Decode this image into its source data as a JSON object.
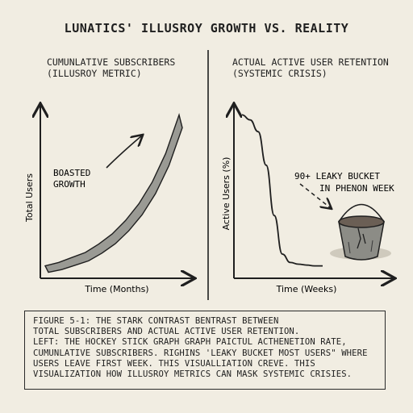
{
  "title": "LUNATICS' ILLUSROY GROWTH VS. REALITY",
  "chart_data": [
    {
      "type": "area",
      "title_lines": [
        "CUMUNLATIVE SUBSCRIBERS",
        "(ILLUSROY METRIC)"
      ],
      "xlabel": "Time (Months)",
      "ylabel": "Total Users",
      "x": [
        0,
        1,
        2,
        3,
        4,
        5,
        6,
        7,
        8,
        9,
        10
      ],
      "values": [
        5,
        7,
        10,
        13,
        18,
        24,
        32,
        42,
        55,
        72,
        95
      ],
      "ylim": [
        0,
        100
      ],
      "annotation_lines": [
        "BOASTED",
        "GROWTH"
      ]
    },
    {
      "type": "line",
      "title_lines": [
        "ACTUAL ACTIVE USER RETENTION",
        "(SYSTEMIC CRISIS)"
      ],
      "xlabel": "Time (Weeks)",
      "ylabel": "Active Users (%)",
      "x": [
        0,
        1,
        2,
        3,
        4,
        5,
        6,
        7,
        8,
        9,
        10
      ],
      "values": [
        95,
        92,
        85,
        65,
        35,
        12,
        7,
        6,
        5.5,
        5,
        5
      ],
      "ylim": [
        0,
        100
      ],
      "annotation_lines": [
        "90+ LEAKY BUCKET",
        "IN PHENON WEEK"
      ]
    }
  ],
  "caption_lines": [
    "FIGURE 5-1: THE STARK CONTRAST BENTRAST BETWEEN",
    "   TOTAL SUBSCRIBERS AND ACTUAL ACTIVE USER RETENTION.",
    "LEFT: THE HOCKEY STICK GRAPH GRAPH PAICTUL ACTHENETION RATE,",
    "CUMUNLATIVE SUBSCRIBERS. RIGHINS 'LEAKY BUCKET MOST USERS\" WHERE",
    "USERS LEAVE   FIRST WEEK. THIS VISUALLIATION CREVE.     THIS",
    "VISUALIZATION HOW ILLUSROY METRICS CAN MASK SYSTEMIC CRISIES."
  ],
  "colors": {
    "ink": "#1f1f1f",
    "paper": "#f1ede2",
    "bucket": "#8c8c86",
    "water": "#6b5f55"
  }
}
